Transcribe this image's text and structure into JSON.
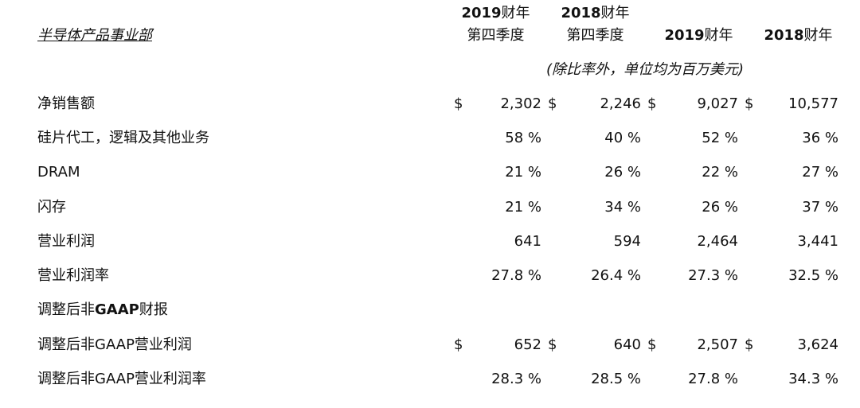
{
  "title": "半导体产品事业部",
  "headers": [
    {
      "year": "2019",
      "unit": "财年",
      "period": "第四季度"
    },
    {
      "year": "2018",
      "unit": "财年",
      "period": "第四季度"
    },
    {
      "year": "2019",
      "unit": "财年"
    },
    {
      "year": "2018",
      "unit": "财年"
    }
  ],
  "note": "(除比率外，单位均为百万美元)",
  "currency": "$",
  "rows": [
    {
      "label": "净销售额",
      "values": [
        "2,302",
        "2,246",
        "9,027",
        "10,577"
      ],
      "currency": true
    },
    {
      "label": "硅片代工，逻辑及其他业务",
      "values": [
        "58 %",
        "40 %",
        "52 %",
        "36 %"
      ]
    },
    {
      "label": "DRAM",
      "values": [
        "21 %",
        "26 %",
        "22 %",
        "27 %"
      ]
    },
    {
      "label": "闪存",
      "values": [
        "21 %",
        "34 %",
        "26 %",
        "37 %"
      ]
    },
    {
      "label": "营业利润",
      "values": [
        "641",
        "594",
        "2,464",
        "3,441"
      ]
    },
    {
      "label": "营业利润率",
      "values": [
        "27.8 %",
        "26.4 %",
        "27.3 %",
        "32.5 %"
      ]
    },
    {
      "label_pre": "调整后非",
      "label_bold": "GAAP",
      "label_post": "财报",
      "values": []
    },
    {
      "label": "调整后非GAAP营业利润",
      "values": [
        "652",
        "640",
        "2,507",
        "3,624"
      ],
      "currency": true
    },
    {
      "label": "调整后非GAAP营业利润率",
      "values": [
        "28.3 %",
        "28.5 %",
        "27.8 %",
        "34.3 %"
      ]
    }
  ]
}
